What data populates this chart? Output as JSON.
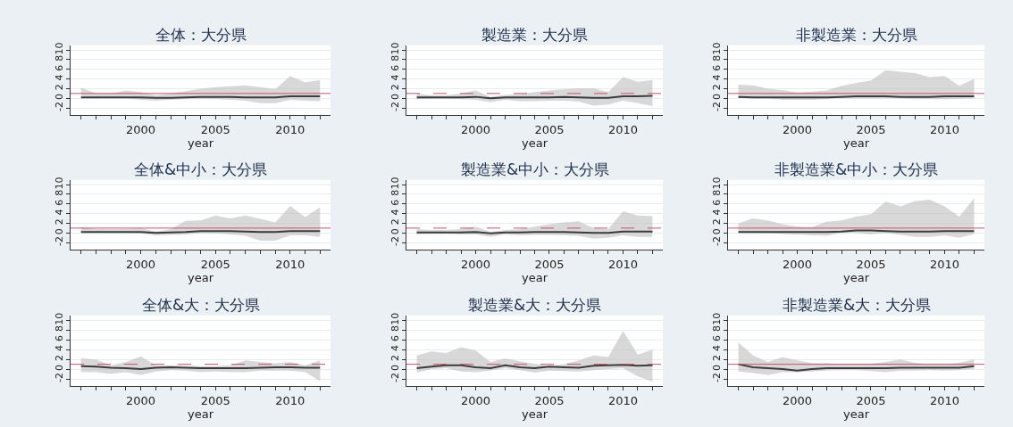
{
  "chart_data": [
    {
      "type": "line",
      "title": "全体：大分県",
      "xlabel": "year",
      "x": [
        1996,
        1997,
        1998,
        1999,
        2000,
        2001,
        2002,
        2003,
        2004,
        2005,
        2006,
        2007,
        2008,
        2009,
        2010,
        2011,
        2012
      ],
      "xlim": [
        1995.3,
        2012.7
      ],
      "xticks": [
        {
          "value": 1996,
          "label": null
        },
        {
          "value": 1997,
          "label": null
        },
        {
          "value": 1998,
          "label": null
        },
        {
          "value": 1999,
          "label": null
        },
        2000,
        {
          "value": 2001,
          "label": null
        },
        {
          "value": 2002,
          "label": null
        },
        {
          "value": 2003,
          "label": null
        },
        {
          "value": 2004,
          "label": null
        },
        2005,
        {
          "value": 2006,
          "label": null
        },
        {
          "value": 2007,
          "label": null
        },
        {
          "value": 2008,
          "label": null
        },
        {
          "value": 2009,
          "label": null
        },
        2010,
        {
          "value": 2011,
          "label": null
        },
        {
          "value": 2012,
          "label": null
        }
      ],
      "ylim": [
        -3.5,
        11
      ],
      "yticks": [
        -2,
        0,
        2,
        4,
        6,
        8,
        10
      ],
      "grid": "y",
      "marker": "none",
      "series": [
        {
          "color": "#3c3c3c",
          "values": [
            0.2,
            0.2,
            0.2,
            0.2,
            0.2,
            0.1,
            0.1,
            0.2,
            0.3,
            0.3,
            0.3,
            0.2,
            0.2,
            0.2,
            0.4,
            0.4,
            0.4
          ],
          "lower": [
            0.0,
            0.0,
            0.0,
            0.0,
            -0.3,
            -0.5,
            -0.3,
            -0.2,
            -0.2,
            -0.2,
            -0.3,
            -0.5,
            -1.0,
            -1.0,
            -0.3,
            -0.5,
            -0.6
          ],
          "upper": [
            2.2,
            1.0,
            1.0,
            1.6,
            1.3,
            0.6,
            1.0,
            1.5,
            2.0,
            2.3,
            2.5,
            2.7,
            2.3,
            1.9,
            4.6,
            3.3,
            3.8
          ]
        }
      ],
      "ref_lines": [
        {
          "axis": "y",
          "value": 1,
          "color": "#c8506e",
          "line_style": "solid"
        }
      ]
    },
    {
      "type": "line",
      "title": "製造業：大分県",
      "xlabel": "year",
      "x": [
        1996,
        1997,
        1998,
        1999,
        2000,
        2001,
        2002,
        2003,
        2004,
        2005,
        2006,
        2007,
        2008,
        2009,
        2010,
        2011,
        2012
      ],
      "xlim": [
        1995.3,
        2012.7
      ],
      "xticks": [
        {
          "value": 1996,
          "label": null
        },
        {
          "value": 1997,
          "label": null
        },
        {
          "value": 1998,
          "label": null
        },
        {
          "value": 1999,
          "label": null
        },
        2000,
        {
          "value": 2001,
          "label": null
        },
        {
          "value": 2002,
          "label": null
        },
        {
          "value": 2003,
          "label": null
        },
        {
          "value": 2004,
          "label": null
        },
        2005,
        {
          "value": 2006,
          "label": null
        },
        {
          "value": 2007,
          "label": null
        },
        {
          "value": 2008,
          "label": null
        },
        {
          "value": 2009,
          "label": null
        },
        2010,
        {
          "value": 2011,
          "label": null
        },
        {
          "value": 2012,
          "label": null
        }
      ],
      "ylim": [
        -3.5,
        11
      ],
      "yticks": [
        -2,
        0,
        2,
        4,
        6,
        8,
        10
      ],
      "grid": "y",
      "marker": "none",
      "series": [
        {
          "color": "#3c3c3c",
          "values": [
            0.2,
            0.2,
            0.2,
            0.2,
            0.3,
            0.0,
            0.2,
            0.2,
            0.2,
            0.2,
            0.3,
            0.2,
            0.1,
            0.1,
            0.4,
            0.4,
            0.5
          ],
          "lower": [
            -0.2,
            -0.1,
            -0.1,
            -0.2,
            -0.3,
            -0.8,
            -0.3,
            -0.6,
            -0.6,
            -0.5,
            -0.5,
            -0.7,
            -1.5,
            -1.3,
            -0.5,
            -1.0,
            -1.6
          ],
          "upper": [
            1.0,
            0.6,
            0.6,
            1.0,
            1.6,
            0.3,
            0.7,
            0.9,
            1.3,
            1.6,
            1.9,
            2.1,
            2.1,
            1.3,
            4.4,
            3.4,
            3.8
          ]
        }
      ],
      "ref_lines": [
        {
          "axis": "y",
          "value": 1,
          "color": "#c8506e",
          "line_style": "dashed"
        }
      ]
    },
    {
      "type": "line",
      "title": "非製造業：大分県",
      "xlabel": "year",
      "x": [
        1996,
        1997,
        1998,
        1999,
        2000,
        2001,
        2002,
        2003,
        2004,
        2005,
        2006,
        2007,
        2008,
        2009,
        2010,
        2011,
        2012
      ],
      "xlim": [
        1995.3,
        2012.7
      ],
      "xticks": [
        {
          "value": 1996,
          "label": null
        },
        {
          "value": 1997,
          "label": null
        },
        {
          "value": 1998,
          "label": null
        },
        {
          "value": 1999,
          "label": null
        },
        2000,
        {
          "value": 2001,
          "label": null
        },
        {
          "value": 2002,
          "label": null
        },
        {
          "value": 2003,
          "label": null
        },
        {
          "value": 2004,
          "label": null
        },
        2005,
        {
          "value": 2006,
          "label": null
        },
        {
          "value": 2007,
          "label": null
        },
        {
          "value": 2008,
          "label": null
        },
        {
          "value": 2009,
          "label": null
        },
        2010,
        {
          "value": 2011,
          "label": null
        },
        {
          "value": 2012,
          "label": null
        }
      ],
      "ylim": [
        -3.5,
        11
      ],
      "yticks": [
        -2,
        0,
        2,
        4,
        6,
        8,
        10
      ],
      "grid": "y",
      "marker": "none",
      "series": [
        {
          "color": "#3c3c3c",
          "values": [
            0.3,
            0.2,
            0.2,
            0.2,
            0.2,
            0.2,
            0.2,
            0.3,
            0.4,
            0.4,
            0.4,
            0.3,
            0.3,
            0.3,
            0.4,
            0.4,
            0.4
          ],
          "lower": [
            0.1,
            0.0,
            0.0,
            -0.3,
            -0.3,
            -0.3,
            -0.2,
            0.0,
            0.0,
            0.0,
            0.0,
            0.0,
            -0.2,
            -0.2,
            -0.2,
            -0.1,
            0.0
          ],
          "upper": [
            2.8,
            2.7,
            2.0,
            1.7,
            1.2,
            1.4,
            1.6,
            2.6,
            3.2,
            3.7,
            5.8,
            5.5,
            5.2,
            4.4,
            4.6,
            2.6,
            4.0
          ]
        }
      ],
      "ref_lines": [
        {
          "axis": "y",
          "value": 1,
          "color": "#c8506e",
          "line_style": "solid"
        }
      ]
    },
    {
      "type": "line",
      "title": "全体&中小：大分県",
      "xlabel": "year",
      "x": [
        1996,
        1997,
        1998,
        1999,
        2000,
        2001,
        2002,
        2003,
        2004,
        2005,
        2006,
        2007,
        2008,
        2009,
        2010,
        2011,
        2012
      ],
      "xlim": [
        1995.3,
        2012.7
      ],
      "xticks": [
        {
          "value": 1996,
          "label": null
        },
        {
          "value": 1997,
          "label": null
        },
        {
          "value": 1998,
          "label": null
        },
        {
          "value": 1999,
          "label": null
        },
        2000,
        {
          "value": 2001,
          "label": null
        },
        {
          "value": 2002,
          "label": null
        },
        {
          "value": 2003,
          "label": null
        },
        {
          "value": 2004,
          "label": null
        },
        2005,
        {
          "value": 2006,
          "label": null
        },
        {
          "value": 2007,
          "label": null
        },
        {
          "value": 2008,
          "label": null
        },
        {
          "value": 2009,
          "label": null
        },
        2010,
        {
          "value": 2011,
          "label": null
        },
        {
          "value": 2012,
          "label": null
        }
      ],
      "ylim": [
        -3.5,
        11
      ],
      "yticks": [
        -2,
        0,
        2,
        4,
        6,
        8,
        10
      ],
      "grid": "y",
      "marker": "none",
      "series": [
        {
          "color": "#3c3c3c",
          "values": [
            0.2,
            0.2,
            0.2,
            0.2,
            0.2,
            0.0,
            0.1,
            0.2,
            0.4,
            0.4,
            0.4,
            0.3,
            0.2,
            0.2,
            0.4,
            0.4,
            0.4
          ],
          "lower": [
            0.0,
            0.0,
            0.0,
            0.0,
            -0.1,
            -0.5,
            -0.4,
            -0.3,
            -0.1,
            -0.1,
            -0.3,
            -0.6,
            -1.6,
            -1.6,
            -0.5,
            -0.5,
            -0.8
          ],
          "upper": [
            1.2,
            0.8,
            0.8,
            0.8,
            1.0,
            0.3,
            0.8,
            2.5,
            2.6,
            3.6,
            3.0,
            3.6,
            2.9,
            2.2,
            5.6,
            3.3,
            5.3
          ]
        }
      ],
      "ref_lines": [
        {
          "axis": "y",
          "value": 1,
          "color": "#c8506e",
          "line_style": "solid"
        }
      ]
    },
    {
      "type": "line",
      "title": "製造業&中小：大分県",
      "xlabel": "year",
      "x": [
        1996,
        1997,
        1998,
        1999,
        2000,
        2001,
        2002,
        2003,
        2004,
        2005,
        2006,
        2007,
        2008,
        2009,
        2010,
        2011,
        2012
      ],
      "xlim": [
        1995.3,
        2012.7
      ],
      "xticks": [
        {
          "value": 1996,
          "label": null
        },
        {
          "value": 1997,
          "label": null
        },
        {
          "value": 1998,
          "label": null
        },
        {
          "value": 1999,
          "label": null
        },
        2000,
        {
          "value": 2001,
          "label": null
        },
        {
          "value": 2002,
          "label": null
        },
        {
          "value": 2003,
          "label": null
        },
        {
          "value": 2004,
          "label": null
        },
        2005,
        {
          "value": 2006,
          "label": null
        },
        {
          "value": 2007,
          "label": null
        },
        {
          "value": 2008,
          "label": null
        },
        {
          "value": 2009,
          "label": null
        },
        2010,
        {
          "value": 2011,
          "label": null
        },
        {
          "value": 2012,
          "label": null
        }
      ],
      "ylim": [
        -3.5,
        11
      ],
      "yticks": [
        -2,
        0,
        2,
        4,
        6,
        8,
        10
      ],
      "grid": "y",
      "marker": "none",
      "series": [
        {
          "color": "#3c3c3c",
          "values": [
            0.1,
            0.1,
            0.1,
            0.1,
            0.2,
            -0.1,
            0.1,
            0.1,
            0.2,
            0.2,
            0.2,
            0.1,
            0.0,
            0.0,
            0.3,
            0.3,
            0.3
          ],
          "lower": [
            -0.3,
            -0.2,
            -0.2,
            -0.3,
            -0.3,
            -0.8,
            -0.3,
            -0.5,
            -0.4,
            -0.4,
            -0.5,
            -0.6,
            -1.2,
            -1.0,
            -0.5,
            -0.8,
            -0.8
          ],
          "upper": [
            0.8,
            0.6,
            0.6,
            0.8,
            1.3,
            0.2,
            0.6,
            0.8,
            1.3,
            1.8,
            2.2,
            2.4,
            1.0,
            0.8,
            4.5,
            3.6,
            3.5
          ]
        }
      ],
      "ref_lines": [
        {
          "axis": "y",
          "value": 1,
          "color": "#c8506e",
          "line_style": "dashed"
        }
      ]
    },
    {
      "type": "line",
      "title": "非製造業&中小：大分県",
      "xlabel": "year",
      "x": [
        1996,
        1997,
        1998,
        1999,
        2000,
        2001,
        2002,
        2003,
        2004,
        2005,
        2006,
        2007,
        2008,
        2009,
        2010,
        2011,
        2012
      ],
      "xlim": [
        1995.3,
        2012.7
      ],
      "xticks": [
        {
          "value": 1996,
          "label": null
        },
        {
          "value": 1997,
          "label": null
        },
        {
          "value": 1998,
          "label": null
        },
        {
          "value": 1999,
          "label": null
        },
        2000,
        {
          "value": 2001,
          "label": null
        },
        {
          "value": 2002,
          "label": null
        },
        {
          "value": 2003,
          "label": null
        },
        {
          "value": 2004,
          "label": null
        },
        2005,
        {
          "value": 2006,
          "label": null
        },
        {
          "value": 2007,
          "label": null
        },
        {
          "value": 2008,
          "label": null
        },
        {
          "value": 2009,
          "label": null
        },
        2010,
        {
          "value": 2011,
          "label": null
        },
        {
          "value": 2012,
          "label": null
        }
      ],
      "ylim": [
        -3.5,
        11
      ],
      "yticks": [
        -2,
        0,
        2,
        4,
        6,
        8,
        10
      ],
      "grid": "y",
      "marker": "none",
      "series": [
        {
          "color": "#3c3c3c",
          "values": [
            0.2,
            0.2,
            0.2,
            0.2,
            0.2,
            0.2,
            0.2,
            0.3,
            0.5,
            0.5,
            0.4,
            0.3,
            0.3,
            0.3,
            0.4,
            0.4,
            0.4
          ],
          "lower": [
            0.0,
            0.0,
            0.0,
            -0.2,
            -0.3,
            -0.5,
            -0.6,
            0.0,
            0.0,
            -0.3,
            0.0,
            -0.4,
            -0.8,
            -0.8,
            -0.5,
            -1.0,
            -0.2
          ],
          "upper": [
            2.0,
            3.0,
            2.6,
            1.8,
            1.3,
            1.2,
            2.3,
            2.6,
            3.4,
            3.9,
            6.5,
            5.5,
            6.6,
            6.9,
            5.5,
            3.4,
            7.2
          ]
        }
      ],
      "ref_lines": [
        {
          "axis": "y",
          "value": 1,
          "color": "#c8506e",
          "line_style": "solid"
        }
      ]
    },
    {
      "type": "line",
      "title": "全体&大：大分県",
      "xlabel": "year",
      "x": [
        1996,
        1997,
        1998,
        1999,
        2000,
        2001,
        2002,
        2003,
        2004,
        2005,
        2006,
        2007,
        2008,
        2009,
        2010,
        2011,
        2012
      ],
      "xlim": [
        1995.3,
        2012.7
      ],
      "xticks": [
        {
          "value": 1996,
          "label": null
        },
        {
          "value": 1997,
          "label": null
        },
        {
          "value": 1998,
          "label": null
        },
        {
          "value": 1999,
          "label": null
        },
        2000,
        {
          "value": 2001,
          "label": null
        },
        {
          "value": 2002,
          "label": null
        },
        {
          "value": 2003,
          "label": null
        },
        {
          "value": 2004,
          "label": null
        },
        2005,
        {
          "value": 2006,
          "label": null
        },
        {
          "value": 2007,
          "label": null
        },
        {
          "value": 2008,
          "label": null
        },
        {
          "value": 2009,
          "label": null
        },
        2010,
        {
          "value": 2011,
          "label": null
        },
        {
          "value": 2012,
          "label": null
        }
      ],
      "ylim": [
        -3.5,
        11
      ],
      "yticks": [
        -2,
        0,
        2,
        4,
        6,
        8,
        10
      ],
      "grid": "y",
      "marker": "none",
      "series": [
        {
          "color": "#3c3c3c",
          "values": [
            0.6,
            0.5,
            0.3,
            0.2,
            0.0,
            0.3,
            0.4,
            0.3,
            0.2,
            0.2,
            0.2,
            0.2,
            0.3,
            0.4,
            0.4,
            0.3,
            0.3
          ],
          "lower": [
            -0.6,
            -0.6,
            -1.0,
            -0.6,
            -1.2,
            -0.5,
            -0.2,
            -0.3,
            -0.6,
            -0.5,
            -0.6,
            -0.6,
            -0.3,
            -0.3,
            -0.3,
            -0.6,
            -2.4
          ],
          "upper": [
            2.2,
            2.0,
            0.8,
            1.5,
            2.6,
            0.8,
            0.8,
            0.7,
            0.6,
            0.6,
            0.8,
            1.8,
            1.5,
            1.2,
            1.5,
            0.8,
            1.8
          ]
        }
      ],
      "ref_lines": [
        {
          "axis": "y",
          "value": 1,
          "color": "#c8506e",
          "line_style": "dashed"
        }
      ]
    },
    {
      "type": "line",
      "title": "製造業&大：大分県",
      "xlabel": "year",
      "x": [
        1996,
        1997,
        1998,
        1999,
        2000,
        2001,
        2002,
        2003,
        2004,
        2005,
        2006,
        2007,
        2008,
        2009,
        2010,
        2011,
        2012
      ],
      "xlim": [
        1995.3,
        2012.7
      ],
      "xticks": [
        {
          "value": 1996,
          "label": null
        },
        {
          "value": 1997,
          "label": null
        },
        {
          "value": 1998,
          "label": null
        },
        {
          "value": 1999,
          "label": null
        },
        2000,
        {
          "value": 2001,
          "label": null
        },
        {
          "value": 2002,
          "label": null
        },
        {
          "value": 2003,
          "label": null
        },
        {
          "value": 2004,
          "label": null
        },
        2005,
        {
          "value": 2006,
          "label": null
        },
        {
          "value": 2007,
          "label": null
        },
        {
          "value": 2008,
          "label": null
        },
        {
          "value": 2009,
          "label": null
        },
        2010,
        {
          "value": 2011,
          "label": null
        },
        {
          "value": 2012,
          "label": null
        }
      ],
      "ylim": [
        -3.5,
        11
      ],
      "yticks": [
        -2,
        0,
        2,
        4,
        6,
        8,
        10
      ],
      "grid": "y",
      "marker": "none",
      "series": [
        {
          "color": "#3c3c3c",
          "values": [
            0.2,
            0.5,
            0.8,
            0.8,
            0.4,
            0.2,
            0.8,
            0.4,
            0.2,
            0.5,
            0.4,
            0.3,
            0.7,
            0.8,
            0.9,
            0.7,
            0.8
          ],
          "lower": [
            -0.7,
            0.0,
            0.2,
            -0.5,
            -0.6,
            -0.3,
            0.2,
            -0.2,
            -0.7,
            -0.3,
            -0.4,
            -0.5,
            -0.2,
            0.0,
            0.2,
            -1.5,
            -2.6
          ],
          "upper": [
            2.8,
            3.6,
            3.3,
            4.5,
            3.8,
            1.5,
            2.2,
            1.6,
            1.1,
            0.7,
            1.0,
            1.8,
            2.8,
            2.5,
            7.8,
            3.0,
            4.0
          ]
        }
      ],
      "ref_lines": [
        {
          "axis": "y",
          "value": 1,
          "color": "#c8506e",
          "line_style": "dashed"
        }
      ]
    },
    {
      "type": "line",
      "title": "非製造業&大：大分県",
      "xlabel": "year",
      "x": [
        1996,
        1997,
        1998,
        1999,
        2000,
        2001,
        2002,
        2003,
        2004,
        2005,
        2006,
        2007,
        2008,
        2009,
        2010,
        2011,
        2012
      ],
      "xlim": [
        1995.3,
        2012.7
      ],
      "xticks": [
        {
          "value": 1996,
          "label": null
        },
        {
          "value": 1997,
          "label": null
        },
        {
          "value": 1998,
          "label": null
        },
        {
          "value": 1999,
          "label": null
        },
        2000,
        {
          "value": 2001,
          "label": null
        },
        {
          "value": 2002,
          "label": null
        },
        {
          "value": 2003,
          "label": null
        },
        {
          "value": 2004,
          "label": null
        },
        2005,
        {
          "value": 2006,
          "label": null
        },
        {
          "value": 2007,
          "label": null
        },
        {
          "value": 2008,
          "label": null
        },
        {
          "value": 2009,
          "label": null
        },
        2010,
        {
          "value": 2011,
          "label": null
        },
        {
          "value": 2012,
          "label": null
        }
      ],
      "ylim": [
        -3.5,
        11
      ],
      "yticks": [
        -2,
        0,
        2,
        4,
        6,
        8,
        10
      ],
      "grid": "y",
      "marker": "none",
      "series": [
        {
          "color": "#3c3c3c",
          "values": [
            1.0,
            0.4,
            0.2,
            0.0,
            -0.3,
            0.0,
            0.2,
            0.2,
            0.2,
            0.2,
            0.2,
            0.3,
            0.3,
            0.3,
            0.3,
            0.3,
            0.6
          ],
          "lower": [
            -0.5,
            -0.8,
            -1.2,
            -0.6,
            -0.6,
            -0.5,
            -0.3,
            -0.2,
            -0.2,
            -0.4,
            -0.6,
            -0.3,
            -0.3,
            -0.2,
            -0.3,
            -0.2,
            0.0
          ],
          "upper": [
            5.5,
            2.8,
            1.5,
            2.5,
            1.8,
            1.2,
            1.2,
            1.0,
            1.0,
            1.1,
            1.5,
            2.0,
            1.3,
            1.0,
            1.0,
            1.3,
            2.0
          ]
        }
      ],
      "ref_lines": [
        {
          "axis": "y",
          "value": 1,
          "color": "#c8506e",
          "line_style": "solid"
        }
      ]
    }
  ]
}
